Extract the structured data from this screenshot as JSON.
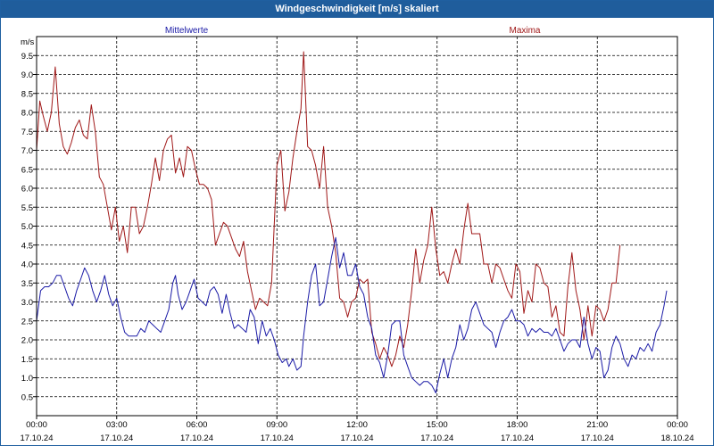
{
  "window": {
    "title": "Windgeschwindigkeit [m/s] skaliert"
  },
  "colors": {
    "mean": "#1a1aa6",
    "max": "#a01818",
    "titlebar": "#1f5d9c",
    "grid": "#000000"
  },
  "chart_data": {
    "type": "line",
    "title": "Windgeschwindigkeit [m/s] skaliert",
    "ylabel": "m/s",
    "ylim": [
      0,
      10
    ],
    "grid": true,
    "y_ticks": [
      "0.5",
      "1.0",
      "1.5",
      "2.0",
      "2.5",
      "3.0",
      "3.5",
      "4.0",
      "4.5",
      "5.0",
      "5.5",
      "6.0",
      "6.5",
      "7.0",
      "7.5",
      "8.0",
      "8.5",
      "9.0",
      "9.5"
    ],
    "x_ticks": [
      {
        "time": "00:00",
        "date": "17.10.24"
      },
      {
        "time": "03:00",
        "date": "17.10.24"
      },
      {
        "time": "06:00",
        "date": "17.10.24"
      },
      {
        "time": "09:00",
        "date": "17.10.24"
      },
      {
        "time": "12:00",
        "date": "17.10.24"
      },
      {
        "time": "15:00",
        "date": "17.10.24"
      },
      {
        "time": "18:00",
        "date": "17.10.24"
      },
      {
        "time": "21:00",
        "date": "17.10.24"
      },
      {
        "time": "00:00",
        "date": "18.10.24"
      }
    ],
    "x_unit": "hours since 17.10.24 00:00",
    "xlim": [
      0,
      24
    ],
    "series": [
      {
        "name": "Mittelwerte",
        "legend_position": "top-left",
        "points": [
          [
            0.0,
            2.5
          ],
          [
            0.15,
            3.3
          ],
          [
            0.3,
            3.4
          ],
          [
            0.45,
            3.4
          ],
          [
            0.6,
            3.5
          ],
          [
            0.75,
            3.7
          ],
          [
            0.9,
            3.7
          ],
          [
            1.05,
            3.4
          ],
          [
            1.2,
            3.1
          ],
          [
            1.35,
            2.9
          ],
          [
            1.5,
            3.3
          ],
          [
            1.65,
            3.6
          ],
          [
            1.8,
            3.9
          ],
          [
            1.95,
            3.7
          ],
          [
            2.1,
            3.3
          ],
          [
            2.25,
            3.0
          ],
          [
            2.4,
            3.3
          ],
          [
            2.55,
            3.7
          ],
          [
            2.7,
            3.2
          ],
          [
            2.85,
            2.9
          ],
          [
            3.0,
            3.1
          ],
          [
            3.15,
            2.6
          ],
          [
            3.3,
            2.2
          ],
          [
            3.45,
            2.1
          ],
          [
            3.6,
            2.1
          ],
          [
            3.75,
            2.1
          ],
          [
            3.9,
            2.3
          ],
          [
            4.05,
            2.2
          ],
          [
            4.2,
            2.5
          ],
          [
            4.35,
            2.4
          ],
          [
            4.5,
            2.3
          ],
          [
            4.65,
            2.2
          ],
          [
            4.8,
            2.5
          ],
          [
            4.95,
            2.8
          ],
          [
            5.1,
            3.5
          ],
          [
            5.2,
            3.7
          ],
          [
            5.3,
            3.2
          ],
          [
            5.45,
            2.8
          ],
          [
            5.6,
            3.0
          ],
          [
            5.75,
            3.3
          ],
          [
            5.9,
            3.6
          ],
          [
            6.05,
            3.1
          ],
          [
            6.2,
            3.0
          ],
          [
            6.35,
            2.9
          ],
          [
            6.5,
            3.3
          ],
          [
            6.65,
            3.4
          ],
          [
            6.8,
            3.2
          ],
          [
            6.95,
            2.7
          ],
          [
            7.1,
            3.2
          ],
          [
            7.25,
            2.7
          ],
          [
            7.4,
            2.3
          ],
          [
            7.55,
            2.4
          ],
          [
            7.7,
            2.3
          ],
          [
            7.85,
            2.2
          ],
          [
            8.0,
            2.8
          ],
          [
            8.15,
            2.6
          ],
          [
            8.3,
            1.9
          ],
          [
            8.45,
            2.5
          ],
          [
            8.6,
            2.1
          ],
          [
            8.75,
            2.3
          ],
          [
            8.9,
            2.0
          ],
          [
            9.05,
            1.6
          ],
          [
            9.2,
            1.4
          ],
          [
            9.35,
            1.5
          ],
          [
            9.45,
            1.3
          ],
          [
            9.6,
            1.5
          ],
          [
            9.75,
            1.2
          ],
          [
            9.9,
            1.3
          ],
          [
            10.0,
            2.1
          ],
          [
            10.15,
            3.0
          ],
          [
            10.3,
            3.7
          ],
          [
            10.45,
            4.0
          ],
          [
            10.6,
            2.9
          ],
          [
            10.75,
            3.0
          ],
          [
            10.9,
            3.6
          ],
          [
            11.05,
            4.2
          ],
          [
            11.2,
            4.7
          ],
          [
            11.35,
            3.9
          ],
          [
            11.5,
            4.3
          ],
          [
            11.65,
            3.7
          ],
          [
            11.8,
            3.7
          ],
          [
            11.95,
            4.0
          ],
          [
            12.1,
            3.4
          ],
          [
            12.25,
            3.2
          ],
          [
            12.4,
            2.6
          ],
          [
            12.55,
            2.3
          ],
          [
            12.7,
            1.6
          ],
          [
            12.85,
            1.4
          ],
          [
            13.0,
            1.0
          ],
          [
            13.15,
            1.6
          ],
          [
            13.3,
            2.4
          ],
          [
            13.45,
            2.5
          ],
          [
            13.6,
            2.5
          ],
          [
            13.75,
            1.6
          ],
          [
            13.9,
            1.3
          ],
          [
            14.05,
            1.0
          ],
          [
            14.2,
            0.9
          ],
          [
            14.35,
            0.8
          ],
          [
            14.5,
            0.9
          ],
          [
            14.65,
            0.9
          ],
          [
            14.8,
            0.8
          ],
          [
            14.95,
            0.6
          ],
          [
            15.1,
            1.1
          ],
          [
            15.25,
            1.5
          ],
          [
            15.4,
            1.0
          ],
          [
            15.55,
            1.5
          ],
          [
            15.7,
            1.8
          ],
          [
            15.85,
            2.4
          ],
          [
            16.0,
            2.0
          ],
          [
            16.15,
            2.3
          ],
          [
            16.3,
            2.8
          ],
          [
            16.45,
            3.0
          ],
          [
            16.6,
            2.7
          ],
          [
            16.75,
            2.4
          ],
          [
            16.9,
            2.3
          ],
          [
            17.05,
            2.2
          ],
          [
            17.2,
            1.8
          ],
          [
            17.35,
            2.2
          ],
          [
            17.5,
            2.5
          ],
          [
            17.65,
            2.6
          ],
          [
            17.8,
            2.8
          ],
          [
            17.95,
            2.5
          ],
          [
            18.1,
            2.5
          ],
          [
            18.25,
            2.4
          ],
          [
            18.4,
            2.1
          ],
          [
            18.55,
            2.3
          ],
          [
            18.7,
            2.2
          ],
          [
            18.85,
            2.3
          ],
          [
            19.0,
            2.2
          ],
          [
            19.15,
            2.2
          ],
          [
            19.3,
            2.1
          ],
          [
            19.45,
            2.3
          ],
          [
            19.6,
            2.0
          ],
          [
            19.75,
            1.7
          ],
          [
            19.9,
            1.9
          ],
          [
            20.05,
            2.0
          ],
          [
            20.2,
            2.0
          ],
          [
            20.35,
            1.8
          ],
          [
            20.5,
            2.6
          ],
          [
            20.65,
            1.9
          ],
          [
            20.8,
            1.5
          ],
          [
            20.95,
            1.8
          ],
          [
            21.1,
            1.7
          ],
          [
            21.25,
            1.0
          ],
          [
            21.4,
            1.2
          ],
          [
            21.55,
            1.8
          ],
          [
            21.7,
            2.1
          ],
          [
            21.85,
            1.9
          ],
          [
            22.0,
            1.5
          ],
          [
            22.15,
            1.3
          ],
          [
            22.3,
            1.6
          ],
          [
            22.45,
            1.5
          ],
          [
            22.6,
            1.8
          ],
          [
            22.75,
            1.7
          ],
          [
            22.9,
            1.9
          ],
          [
            23.05,
            1.7
          ],
          [
            23.2,
            2.2
          ],
          [
            23.35,
            2.4
          ],
          [
            23.5,
            2.9
          ],
          [
            23.6,
            3.3
          ]
        ]
      },
      {
        "name": "Maxima",
        "legend_position": "top-right",
        "points": [
          [
            0.0,
            7.0
          ],
          [
            0.12,
            8.3
          ],
          [
            0.25,
            7.9
          ],
          [
            0.4,
            7.5
          ],
          [
            0.55,
            8.0
          ],
          [
            0.7,
            9.2
          ],
          [
            0.85,
            7.7
          ],
          [
            1.0,
            7.1
          ],
          [
            1.15,
            6.9
          ],
          [
            1.3,
            7.2
          ],
          [
            1.45,
            7.6
          ],
          [
            1.6,
            7.8
          ],
          [
            1.75,
            7.4
          ],
          [
            1.9,
            7.3
          ],
          [
            2.05,
            8.2
          ],
          [
            2.2,
            7.5
          ],
          [
            2.35,
            6.3
          ],
          [
            2.5,
            6.1
          ],
          [
            2.65,
            5.5
          ],
          [
            2.8,
            4.9
          ],
          [
            2.95,
            5.5
          ],
          [
            3.1,
            4.6
          ],
          [
            3.25,
            5.0
          ],
          [
            3.4,
            4.3
          ],
          [
            3.55,
            5.5
          ],
          [
            3.7,
            5.5
          ],
          [
            3.85,
            4.8
          ],
          [
            4.0,
            5.0
          ],
          [
            4.15,
            5.5
          ],
          [
            4.3,
            6.1
          ],
          [
            4.45,
            6.8
          ],
          [
            4.6,
            6.2
          ],
          [
            4.75,
            7.0
          ],
          [
            4.9,
            7.3
          ],
          [
            5.05,
            7.4
          ],
          [
            5.2,
            6.4
          ],
          [
            5.35,
            6.8
          ],
          [
            5.5,
            6.3
          ],
          [
            5.65,
            7.1
          ],
          [
            5.8,
            7.0
          ],
          [
            5.95,
            6.5
          ],
          [
            6.1,
            6.1
          ],
          [
            6.25,
            6.1
          ],
          [
            6.4,
            6.0
          ],
          [
            6.55,
            5.7
          ],
          [
            6.7,
            4.5
          ],
          [
            6.85,
            4.8
          ],
          [
            7.0,
            5.1
          ],
          [
            7.15,
            5.0
          ],
          [
            7.3,
            4.7
          ],
          [
            7.45,
            4.4
          ],
          [
            7.6,
            4.2
          ],
          [
            7.75,
            4.6
          ],
          [
            7.9,
            3.8
          ],
          [
            8.05,
            3.3
          ],
          [
            8.2,
            2.8
          ],
          [
            8.35,
            3.1
          ],
          [
            8.5,
            3.0
          ],
          [
            8.65,
            2.9
          ],
          [
            8.8,
            3.5
          ],
          [
            9.0,
            6.6
          ],
          [
            9.15,
            7.0
          ],
          [
            9.3,
            5.4
          ],
          [
            9.45,
            5.9
          ],
          [
            9.6,
            6.8
          ],
          [
            9.75,
            7.5
          ],
          [
            9.9,
            8.1
          ],
          [
            10.0,
            9.6
          ],
          [
            10.15,
            7.1
          ],
          [
            10.3,
            7.0
          ],
          [
            10.45,
            6.6
          ],
          [
            10.6,
            6.0
          ],
          [
            10.75,
            7.1
          ],
          [
            10.9,
            5.5
          ],
          [
            11.05,
            5.0
          ],
          [
            11.2,
            4.3
          ],
          [
            11.35,
            3.1
          ],
          [
            11.5,
            3.0
          ],
          [
            11.65,
            2.6
          ],
          [
            11.8,
            3.0
          ],
          [
            11.95,
            3.1
          ],
          [
            12.1,
            3.6
          ],
          [
            12.25,
            3.5
          ],
          [
            12.4,
            3.6
          ],
          [
            12.55,
            2.2
          ],
          [
            12.7,
            1.9
          ],
          [
            12.85,
            1.5
          ],
          [
            13.0,
            1.8
          ],
          [
            13.15,
            1.6
          ],
          [
            13.3,
            1.3
          ],
          [
            13.45,
            1.6
          ],
          [
            13.6,
            2.1
          ],
          [
            13.75,
            1.8
          ],
          [
            13.9,
            2.4
          ],
          [
            14.05,
            3.3
          ],
          [
            14.2,
            4.4
          ],
          [
            14.35,
            3.5
          ],
          [
            14.5,
            4.1
          ],
          [
            14.65,
            4.5
          ],
          [
            14.8,
            5.5
          ],
          [
            14.95,
            4.4
          ],
          [
            15.1,
            3.7
          ],
          [
            15.25,
            3.8
          ],
          [
            15.4,
            3.5
          ],
          [
            15.55,
            4.0
          ],
          [
            15.7,
            4.4
          ],
          [
            15.85,
            4.0
          ],
          [
            16.0,
            4.9
          ],
          [
            16.15,
            5.6
          ],
          [
            16.3,
            4.8
          ],
          [
            16.45,
            4.8
          ],
          [
            16.6,
            4.8
          ],
          [
            16.75,
            4.0
          ],
          [
            16.9,
            4.0
          ],
          [
            17.05,
            3.5
          ],
          [
            17.2,
            4.0
          ],
          [
            17.35,
            3.9
          ],
          [
            17.5,
            3.6
          ],
          [
            17.65,
            3.3
          ],
          [
            17.8,
            3.1
          ],
          [
            17.95,
            4.0
          ],
          [
            18.1,
            3.8
          ],
          [
            18.25,
            2.7
          ],
          [
            18.4,
            3.3
          ],
          [
            18.55,
            3.0
          ],
          [
            18.7,
            4.0
          ],
          [
            18.85,
            3.9
          ],
          [
            19.0,
            3.5
          ],
          [
            19.15,
            3.4
          ],
          [
            19.3,
            2.6
          ],
          [
            19.45,
            2.9
          ],
          [
            19.6,
            2.2
          ],
          [
            19.75,
            2.1
          ],
          [
            19.9,
            3.4
          ],
          [
            20.05,
            4.3
          ],
          [
            20.2,
            3.3
          ],
          [
            20.35,
            2.8
          ],
          [
            20.5,
            2.0
          ],
          [
            20.65,
            2.9
          ],
          [
            20.8,
            2.1
          ],
          [
            20.95,
            2.9
          ],
          [
            21.1,
            2.8
          ],
          [
            21.25,
            2.5
          ],
          [
            21.4,
            2.8
          ],
          [
            21.55,
            3.5
          ],
          [
            21.7,
            3.5
          ],
          [
            21.85,
            4.5
          ]
        ]
      }
    ]
  }
}
